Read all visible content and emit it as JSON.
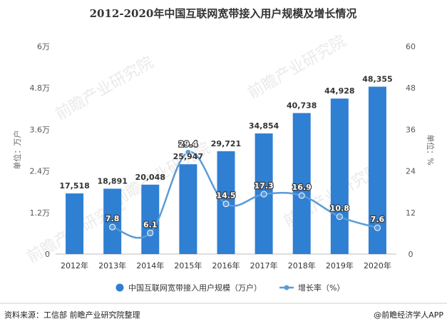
{
  "chart_data": {
    "type": "bar",
    "title": "2012-2020年中国互联网宽带接入用户规模及增长情况",
    "categories": [
      "2012年",
      "2013年",
      "2014年",
      "2015年",
      "2016年",
      "2017年",
      "2018年",
      "2019年",
      "2020年"
    ],
    "series": [
      {
        "name": "中国互联网宽带接入用户规模（万户）",
        "type": "bar",
        "axis": "left",
        "color": "#2f7fd3",
        "values": [
          17518,
          18891,
          20048,
          25947,
          29721,
          34854,
          40738,
          44928,
          48355
        ],
        "labels": [
          "17,518",
          "18,891",
          "20,048",
          "25,947",
          "29,721",
          "34,854",
          "40,738",
          "44,928",
          "48,355"
        ]
      },
      {
        "name": "增长率（%）",
        "type": "line",
        "axis": "right",
        "color": "#5b9bd5",
        "values": [
          null,
          7.8,
          6.1,
          29.4,
          14.5,
          17.3,
          16.9,
          10.8,
          7.6
        ],
        "labels": [
          "",
          "7.8",
          "6.1",
          "29.4",
          "14.5",
          "17.3",
          "16.9",
          "10.8",
          "7.6"
        ]
      }
    ],
    "y_left": {
      "label": "单位：万户",
      "range": [
        0,
        60000
      ],
      "ticks": [
        0,
        12000,
        24000,
        36000,
        48000,
        60000
      ],
      "tick_labels": [
        "0",
        "1.2万",
        "2.4万",
        "3.6万",
        "4.8万",
        "6万"
      ]
    },
    "y_right": {
      "label": "单位：%",
      "range": [
        0,
        60
      ],
      "ticks": [
        0,
        12,
        24,
        36,
        48,
        60
      ],
      "tick_labels": [
        "0",
        "12",
        "24",
        "36",
        "48",
        "60"
      ]
    },
    "grid": false,
    "legend_position": "bottom"
  },
  "watermark": "前瞻产业研究院",
  "footer": {
    "source": "资料来源：工信部 前瞻产业研究院整理",
    "brand": "@前瞻经济学人APP"
  }
}
